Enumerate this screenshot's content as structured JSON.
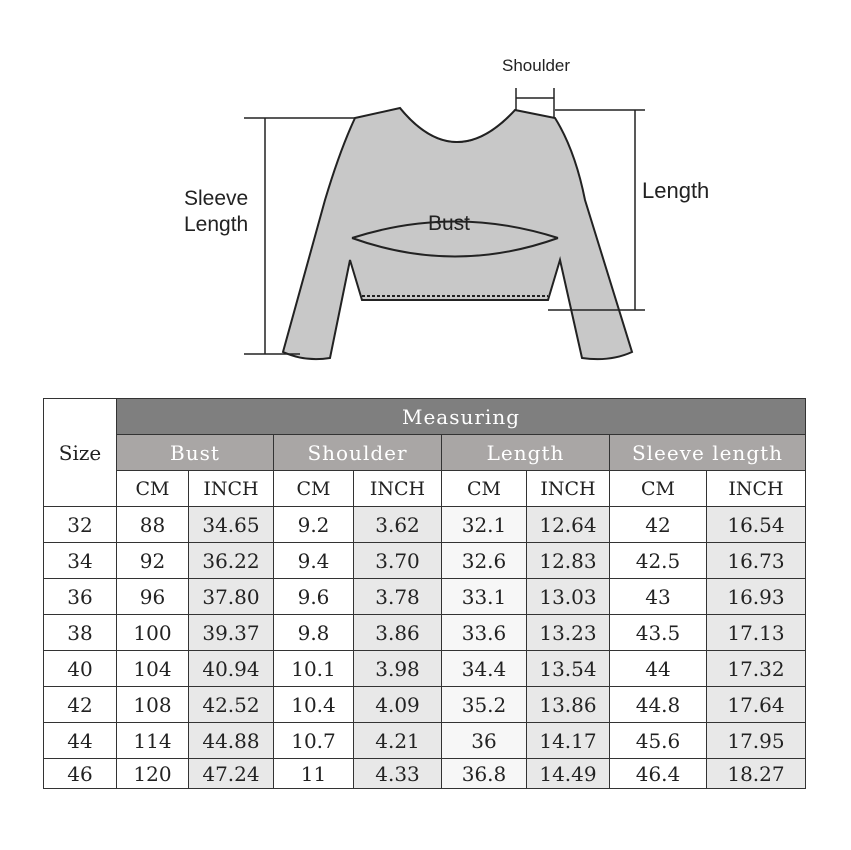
{
  "figure": {
    "labels": {
      "shoulder": "Shoulder",
      "sleeve_length": "Sleeve\nLength",
      "bust": "Bust",
      "length": "Length"
    }
  },
  "table": {
    "size_header": "Size",
    "measuring_header": "Measuring",
    "groups": [
      "Bust",
      "Shoulder",
      "Length",
      "Sleeve length"
    ],
    "units": [
      "CM",
      "INCH",
      "CM",
      "INCH",
      "CM",
      "INCH",
      "CM",
      "INCH"
    ],
    "rows": [
      [
        "32",
        "88",
        "34.65",
        "9.2",
        "3.62",
        "32.1",
        "12.64",
        "42",
        "16.54"
      ],
      [
        "34",
        "92",
        "36.22",
        "9.4",
        "3.70",
        "32.6",
        "12.83",
        "42.5",
        "16.73"
      ],
      [
        "36",
        "96",
        "37.80",
        "9.6",
        "3.78",
        "33.1",
        "13.03",
        "43",
        "16.93"
      ],
      [
        "38",
        "100",
        "39.37",
        "9.8",
        "3.86",
        "33.6",
        "13.23",
        "43.5",
        "17.13"
      ],
      [
        "40",
        "104",
        "40.94",
        "10.1",
        "3.98",
        "34.4",
        "13.54",
        "44",
        "17.32"
      ],
      [
        "42",
        "108",
        "42.52",
        "10.4",
        "4.09",
        "35.2",
        "13.86",
        "44.8",
        "17.64"
      ],
      [
        "44",
        "114",
        "44.88",
        "10.7",
        "4.21",
        "36",
        "14.17",
        "45.6",
        "17.95"
      ],
      [
        "46",
        "120",
        "47.24",
        "11",
        "4.33",
        "36.8",
        "14.49",
        "46.4",
        "18.27"
      ]
    ]
  },
  "colors": {
    "header_dark": "#7f7f7f",
    "header_group": "#a9a6a5",
    "inch_shade": "#e8e8e8"
  }
}
